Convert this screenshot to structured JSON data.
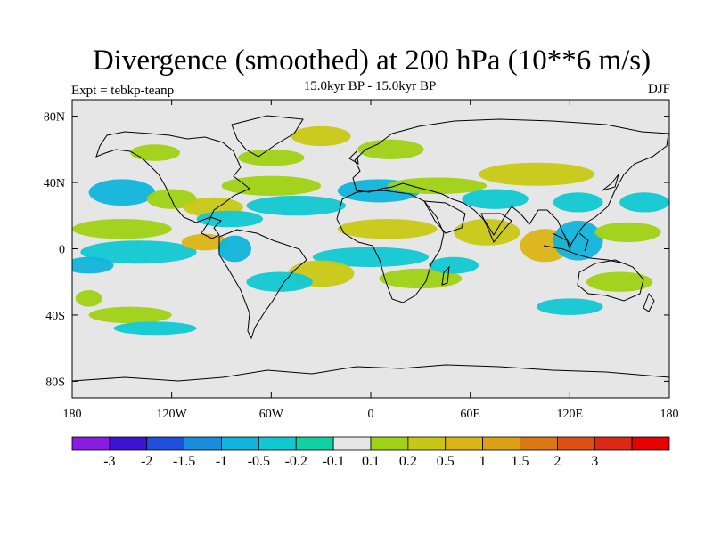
{
  "title": "Divergence (smoothed) at 200 hPa (10**6 m/s)",
  "subtitle": "15.0kyr BP - 15.0kyr BP",
  "experiment": "Expt = tebkp-teanp",
  "season": "DJF",
  "map": {
    "lon_range": [
      -180,
      180
    ],
    "lat_range": [
      -90,
      90
    ],
    "x_ticks": [
      {
        "lon": -180,
        "label": "180"
      },
      {
        "lon": -120,
        "label": "120W"
      },
      {
        "lon": -60,
        "label": "60W"
      },
      {
        "lon": 0,
        "label": "0"
      },
      {
        "lon": 60,
        "label": "60E"
      },
      {
        "lon": 120,
        "label": "120E"
      },
      {
        "lon": 180,
        "label": "180"
      }
    ],
    "y_ticks": [
      {
        "lat": 80,
        "label": "80N"
      },
      {
        "lat": 40,
        "label": "40N"
      },
      {
        "lat": 0,
        "label": "0"
      },
      {
        "lat": -40,
        "label": "40S"
      },
      {
        "lat": -80,
        "label": "80S"
      }
    ],
    "background_color": "#e6e6e6",
    "coast_color": "#000000"
  },
  "colorbar": {
    "colors": [
      "#8a1be0",
      "#3c14d2",
      "#1e50dc",
      "#1a8cdc",
      "#10b4dc",
      "#10c8d2",
      "#10d2a0",
      "#e6e6e6",
      "#a0d214",
      "#c8c814",
      "#dcb414",
      "#dca014",
      "#dc7814",
      "#dc5014",
      "#dc2814",
      "#e60000"
    ],
    "labels": [
      "-3",
      "-2",
      "-1.5",
      "-1",
      "-0.5",
      "-0.2",
      "-0.1",
      "0.1",
      "0.2",
      "0.5",
      "1",
      "1.5",
      "2",
      "3"
    ]
  },
  "chart_data": {
    "type": "contour-map",
    "variable": "Divergence (smoothed) at 200 hPa",
    "units": "10**6 m/s",
    "levels": [
      -3,
      -2,
      -1.5,
      -1,
      -0.5,
      -0.2,
      -0.1,
      0.1,
      0.2,
      0.5,
      1,
      1.5,
      2,
      3
    ],
    "regions": [
      {
        "lon": -150,
        "lat": 12,
        "rx": 30,
        "ry": 6,
        "value": 0.2
      },
      {
        "lon": -140,
        "lat": -2,
        "rx": 35,
        "ry": 7,
        "value": -0.2
      },
      {
        "lon": -170,
        "lat": -10,
        "rx": 15,
        "ry": 5,
        "value": -0.5
      },
      {
        "lon": -100,
        "lat": 4,
        "rx": 14,
        "ry": 5,
        "value": 1.0
      },
      {
        "lon": -82,
        "lat": 0,
        "rx": 10,
        "ry": 8,
        "value": -0.5
      },
      {
        "lon": -150,
        "lat": 34,
        "rx": 20,
        "ry": 8,
        "value": -0.5
      },
      {
        "lon": -120,
        "lat": 30,
        "rx": 15,
        "ry": 6,
        "value": 0.2
      },
      {
        "lon": -95,
        "lat": 25,
        "rx": 18,
        "ry": 6,
        "value": 0.5
      },
      {
        "lon": -85,
        "lat": 18,
        "rx": 20,
        "ry": 5,
        "value": -0.2
      },
      {
        "lon": -60,
        "lat": 38,
        "rx": 30,
        "ry": 6,
        "value": 0.2
      },
      {
        "lon": -45,
        "lat": 26,
        "rx": 30,
        "ry": 6,
        "value": -0.2
      },
      {
        "lon": -60,
        "lat": 55,
        "rx": 20,
        "ry": 5,
        "value": 0.2
      },
      {
        "lon": -30,
        "lat": 68,
        "rx": 18,
        "ry": 6,
        "value": 0.5
      },
      {
        "lon": 12,
        "lat": 60,
        "rx": 20,
        "ry": 6,
        "value": 0.2
      },
      {
        "lon": 5,
        "lat": 35,
        "rx": 25,
        "ry": 7,
        "value": -0.5
      },
      {
        "lon": 40,
        "lat": 38,
        "rx": 30,
        "ry": 5,
        "value": 0.2
      },
      {
        "lon": 10,
        "lat": 12,
        "rx": 30,
        "ry": 6,
        "value": 0.5
      },
      {
        "lon": 0,
        "lat": -5,
        "rx": 35,
        "ry": 6,
        "value": -0.2
      },
      {
        "lon": -30,
        "lat": -15,
        "rx": 20,
        "ry": 8,
        "value": 0.5
      },
      {
        "lon": -55,
        "lat": -20,
        "rx": 20,
        "ry": 6,
        "value": -0.2
      },
      {
        "lon": 30,
        "lat": -18,
        "rx": 25,
        "ry": 6,
        "value": 0.2
      },
      {
        "lon": 50,
        "lat": -10,
        "rx": 15,
        "ry": 5,
        "value": -0.2
      },
      {
        "lon": 70,
        "lat": 10,
        "rx": 20,
        "ry": 8,
        "value": 0.5
      },
      {
        "lon": 75,
        "lat": 30,
        "rx": 20,
        "ry": 6,
        "value": -0.2
      },
      {
        "lon": 100,
        "lat": 45,
        "rx": 35,
        "ry": 7,
        "value": 0.5
      },
      {
        "lon": 105,
        "lat": 2,
        "rx": 15,
        "ry": 10,
        "value": 1.0
      },
      {
        "lon": 125,
        "lat": 5,
        "rx": 15,
        "ry": 12,
        "value": -0.5
      },
      {
        "lon": 125,
        "lat": 28,
        "rx": 15,
        "ry": 6,
        "value": -0.2
      },
      {
        "lon": 165,
        "lat": 28,
        "rx": 15,
        "ry": 6,
        "value": -0.2
      },
      {
        "lon": 155,
        "lat": 10,
        "rx": 20,
        "ry": 6,
        "value": 0.2
      },
      {
        "lon": 150,
        "lat": -20,
        "rx": 20,
        "ry": 6,
        "value": 0.2
      },
      {
        "lon": 120,
        "lat": -35,
        "rx": 20,
        "ry": 5,
        "value": -0.2
      },
      {
        "lon": -145,
        "lat": -40,
        "rx": 25,
        "ry": 5,
        "value": 0.2
      },
      {
        "lon": -130,
        "lat": -48,
        "rx": 25,
        "ry": 4,
        "value": -0.2
      },
      {
        "lon": -170,
        "lat": -30,
        "rx": 8,
        "ry": 5,
        "value": 0.2
      },
      {
        "lon": -130,
        "lat": 58,
        "rx": 15,
        "ry": 5,
        "value": 0.2
      }
    ]
  }
}
